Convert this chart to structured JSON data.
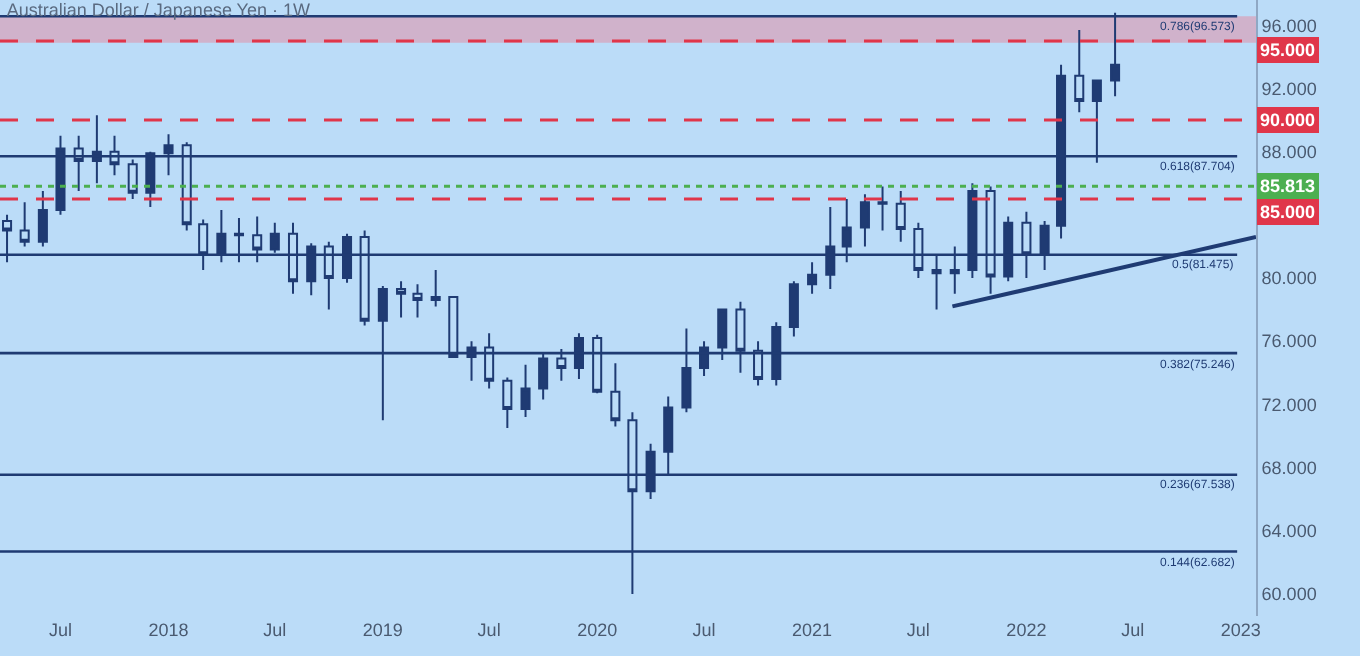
{
  "chart_data": {
    "type": "candlestick",
    "title": "Australian Dollar / Japanese Yen · 1W",
    "series": [
      {
        "color": "#1f3b73",
        "x": [
          "2017-04",
          "2017-05",
          "2017-06",
          "2017-07",
          "2017-08",
          "2017-09",
          "2017-10",
          "2017-11",
          "2017-12",
          "2018-01",
          "2018-02",
          "2018-03",
          "2018-04",
          "2018-05",
          "2018-06",
          "2018-07",
          "2018-08",
          "2018-09",
          "2018-10",
          "2018-11",
          "2018-12",
          "2019-01",
          "2019-02",
          "2019-03",
          "2019-04",
          "2019-05",
          "2019-06",
          "2019-07",
          "2019-08",
          "2019-09",
          "2019-10",
          "2019-11",
          "2019-12",
          "2020-01",
          "2020-02",
          "2020-03",
          "2020-04",
          "2020-05",
          "2020-06",
          "2020-07",
          "2020-08",
          "2020-09",
          "2020-10",
          "2020-11",
          "2020-12",
          "2021-01",
          "2021-02",
          "2021-03",
          "2021-04",
          "2021-05",
          "2021-06",
          "2021-07",
          "2021-08",
          "2021-09",
          "2021-10",
          "2021-11",
          "2021-12",
          "2022-01",
          "2022-02",
          "2022-03",
          "2022-04",
          "2022-05",
          "2022-06"
        ],
        "ohlc": [
          [
            83.6,
            84.0,
            81.0,
            83.0
          ],
          [
            83.0,
            84.8,
            82.0,
            82.3
          ],
          [
            82.3,
            85.5,
            82.0,
            84.3
          ],
          [
            84.3,
            89.0,
            84.0,
            88.2
          ],
          [
            88.2,
            89.0,
            85.5,
            87.4
          ],
          [
            87.4,
            90.3,
            86.0,
            88.0
          ],
          [
            88.0,
            89.0,
            86.5,
            87.2
          ],
          [
            87.2,
            87.5,
            85.0,
            85.4
          ],
          [
            85.4,
            88.0,
            84.5,
            87.9
          ],
          [
            87.9,
            89.1,
            86.5,
            88.4
          ],
          [
            88.4,
            88.6,
            83.0,
            83.4
          ],
          [
            83.4,
            83.7,
            80.5,
            81.5
          ],
          [
            81.5,
            84.3,
            81.0,
            82.8
          ],
          [
            82.8,
            83.8,
            81.0,
            82.7
          ],
          [
            82.7,
            83.9,
            81.0,
            81.8
          ],
          [
            81.8,
            83.5,
            81.6,
            82.8
          ],
          [
            82.8,
            83.5,
            79.0,
            79.8
          ],
          [
            79.8,
            82.2,
            78.9,
            82.0
          ],
          [
            82.0,
            82.3,
            78.0,
            80.0
          ],
          [
            80.0,
            82.8,
            79.7,
            82.6
          ],
          [
            82.6,
            83.0,
            77.0,
            77.3
          ],
          [
            77.3,
            79.5,
            71.0,
            79.3
          ],
          [
            79.3,
            79.8,
            77.5,
            79.0
          ],
          [
            79.0,
            79.6,
            77.5,
            78.6
          ],
          [
            78.6,
            80.5,
            78.2,
            78.8
          ],
          [
            78.8,
            78.8,
            75.0,
            75.0
          ],
          [
            75.0,
            76.0,
            73.5,
            75.6
          ],
          [
            75.6,
            76.5,
            73.0,
            73.5
          ],
          [
            73.5,
            73.7,
            70.5,
            71.7
          ],
          [
            71.7,
            74.5,
            71.2,
            73.0
          ],
          [
            73.0,
            75.3,
            72.3,
            74.9
          ],
          [
            74.9,
            75.5,
            73.5,
            74.3
          ],
          [
            74.3,
            76.5,
            73.6,
            76.2
          ],
          [
            76.2,
            76.4,
            72.7,
            72.8
          ],
          [
            72.8,
            74.6,
            70.6,
            71.0
          ],
          [
            71.0,
            71.5,
            60.0,
            66.5
          ],
          [
            66.5,
            69.5,
            66.0,
            69.0
          ],
          [
            69.0,
            72.5,
            67.5,
            71.8
          ],
          [
            71.8,
            76.8,
            71.5,
            74.3
          ],
          [
            74.3,
            76.0,
            73.8,
            75.6
          ],
          [
            75.6,
            78.0,
            74.8,
            78.0
          ],
          [
            78.0,
            78.5,
            74.0,
            75.4
          ],
          [
            75.4,
            76.0,
            73.2,
            73.6
          ],
          [
            73.6,
            77.2,
            73.2,
            76.9
          ],
          [
            76.9,
            79.8,
            76.3,
            79.6
          ],
          [
            79.6,
            81.0,
            79.0,
            80.2
          ],
          [
            80.2,
            84.5,
            79.3,
            82.0
          ],
          [
            82.0,
            85.0,
            81.0,
            83.2
          ],
          [
            83.2,
            85.3,
            82.0,
            84.8
          ],
          [
            84.8,
            85.8,
            83.0,
            84.7
          ],
          [
            84.7,
            85.5,
            82.3,
            83.1
          ],
          [
            83.1,
            83.5,
            80.0,
            80.5
          ],
          [
            80.5,
            81.5,
            78.0,
            80.3
          ],
          [
            80.3,
            82.0,
            79.0,
            80.5
          ],
          [
            80.5,
            86.0,
            80.0,
            85.5
          ],
          [
            85.5,
            85.8,
            79.0,
            80.1
          ],
          [
            80.1,
            83.9,
            79.8,
            83.5
          ],
          [
            83.5,
            84.2,
            80.0,
            81.5
          ],
          [
            81.5,
            83.6,
            80.5,
            83.3
          ],
          [
            83.3,
            93.5,
            82.5,
            92.8
          ],
          [
            92.8,
            95.7,
            90.5,
            91.2
          ],
          [
            91.2,
            92.5,
            87.3,
            92.5
          ],
          [
            92.5,
            96.8,
            91.5,
            93.5
          ]
        ]
      },
      {
        "type": "line",
        "color": "#1f3b73",
        "x": [
          "2021-08-28",
          "2023-01-27"
        ],
        "values": [
          78.2,
          82.6
        ]
      }
    ],
    "xlim": [
      "2017-03-20",
      "2023-01-27"
    ],
    "xticks": [
      {
        "value": "2017-07",
        "label": "Jul"
      },
      {
        "value": "2018-01",
        "label": "2018"
      },
      {
        "value": "2018-07",
        "label": "Jul"
      },
      {
        "value": "2019-01",
        "label": "2019"
      },
      {
        "value": "2019-07",
        "label": "Jul"
      },
      {
        "value": "2020-01",
        "label": "2020"
      },
      {
        "value": "2020-07",
        "label": "Jul"
      },
      {
        "value": "2021-01",
        "label": "2021"
      },
      {
        "value": "2021-07",
        "label": "Jul"
      },
      {
        "value": "2022-01",
        "label": "2022"
      },
      {
        "value": "2022-07",
        "label": "Jul"
      },
      {
        "value": "2023-01",
        "label": "2023"
      }
    ],
    "ylim": [
      58.6,
      97.6
    ],
    "yticks": [
      {
        "value": 60,
        "label": "60.000"
      },
      {
        "value": 64,
        "label": "64.000"
      },
      {
        "value": 68,
        "label": "68.000"
      },
      {
        "value": 72,
        "label": "72.000"
      },
      {
        "value": 76,
        "label": "76.000"
      },
      {
        "value": 80,
        "label": "80.000"
      },
      {
        "value": 88,
        "label": "88.000"
      },
      {
        "value": 92,
        "label": "92.000"
      },
      {
        "value": 96,
        "label": "96.000"
      }
    ],
    "ref_lines": [
      {
        "axis": "y",
        "value": 96.573,
        "label": "0.786(96.573)",
        "color": "#1f3b73",
        "line_style": "solid"
      },
      {
        "axis": "y",
        "value": 87.704,
        "label": "0.618(87.704)",
        "color": "#1f3b73",
        "line_style": "solid"
      },
      {
        "axis": "y",
        "value": 81.475,
        "label": "0.5(81.475)",
        "color": "#1f3b73",
        "line_style": "solid"
      },
      {
        "axis": "y",
        "value": 75.246,
        "label": "0.382(75.246)",
        "color": "#1f3b73",
        "line_style": "solid"
      },
      {
        "axis": "y",
        "value": 67.538,
        "label": "0.236(67.538)",
        "color": "#1f3b73",
        "line_style": "solid"
      },
      {
        "axis": "y",
        "value": 62.682,
        "label": "0.144(62.682)",
        "color": "#1f3b73",
        "line_style": "solid"
      },
      {
        "axis": "y",
        "value": 95,
        "label": "95.000",
        "color": "#e0364a",
        "line_style": "dashed"
      },
      {
        "axis": "y",
        "value": 90,
        "label": "90.000",
        "color": "#e0364a",
        "line_style": "dashed"
      },
      {
        "axis": "y",
        "value": 85,
        "label": "85.000",
        "color": "#e0364a",
        "line_style": "dashed"
      },
      {
        "axis": "y",
        "value": 85.813,
        "label": "85.813",
        "color": "#4caf50",
        "line_style": "dotted"
      }
    ],
    "bands": [
      {
        "axis": "y",
        "from": 94.9,
        "to": 96.573,
        "color": "#d9a0b8"
      }
    ]
  }
}
